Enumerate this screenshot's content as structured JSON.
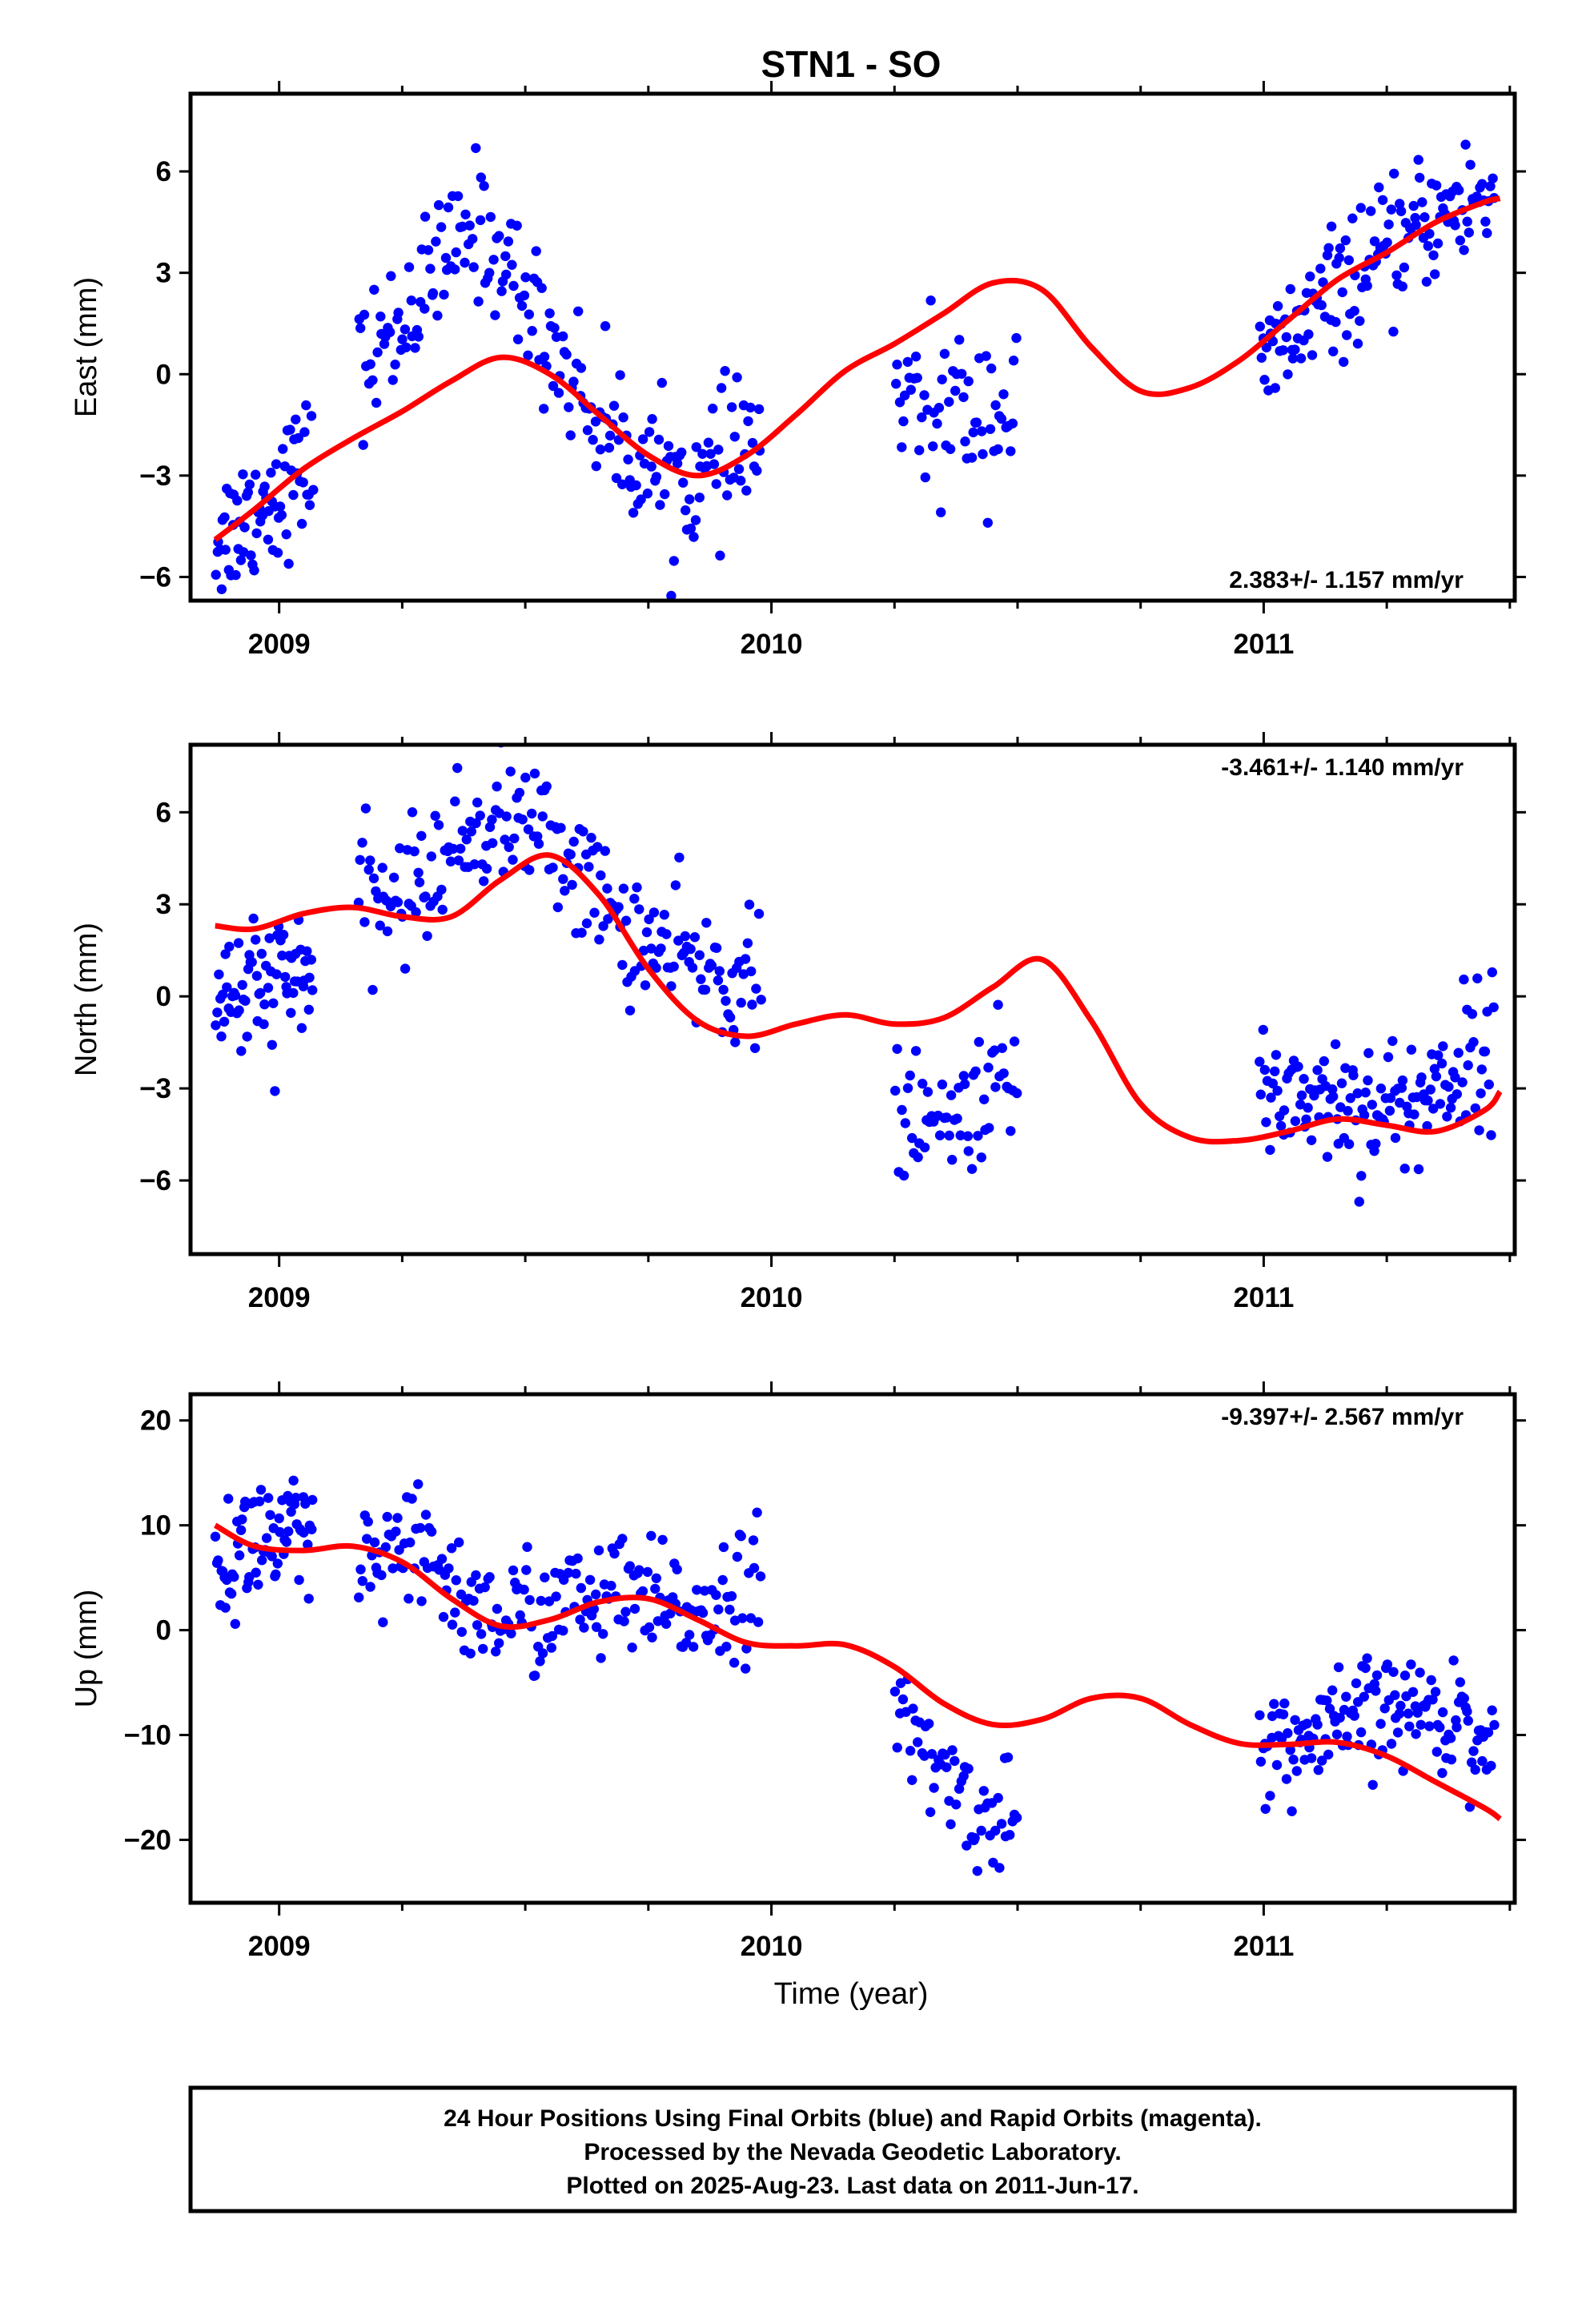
{
  "title": "STN1 - SO",
  "xlabel": "Time (year)",
  "footer": [
    "24 Hour Positions Using Final Orbits (blue) and Rapid Orbits (magenta).",
    "Processed by the Nevada Geodetic Laboratory.",
    "Plotted on 2025-Aug-23. Last data on 2011-Jun-17."
  ],
  "colors": {
    "points": "#0000ff",
    "fit": "#ff0000",
    "frame": "#000000"
  },
  "chart_data": [
    {
      "type": "scatter",
      "ylabel": "East (mm)",
      "rate": "2.383+/- 1.157 mm/yr",
      "xlim": [
        2008.82,
        2011.51
      ],
      "ylim": [
        -6.7,
        8.3
      ],
      "xticks": [
        2009,
        2010,
        2011
      ],
      "yticks": [
        -6,
        -3,
        0,
        3,
        6
      ],
      "fit": {
        "x": [
          2008.87,
          2008.95,
          2009.05,
          2009.15,
          2009.25,
          2009.35,
          2009.45,
          2009.55,
          2009.65,
          2009.75,
          2009.85,
          2009.95,
          2010.05,
          2010.15,
          2010.25,
          2010.35,
          2010.45,
          2010.55,
          2010.65,
          2010.75,
          2010.85,
          2010.95,
          2011.05,
          2011.15,
          2011.25,
          2011.35,
          2011.45,
          2011.48
        ],
        "y": [
          -4.9,
          -4.0,
          -2.8,
          -1.9,
          -1.1,
          -0.2,
          0.5,
          0.0,
          -1.2,
          -2.4,
          -3.0,
          -2.4,
          -1.2,
          0.1,
          0.9,
          1.8,
          2.7,
          2.5,
          0.8,
          -0.5,
          -0.4,
          0.4,
          1.6,
          2.8,
          3.6,
          4.5,
          5.1,
          5.2
        ]
      },
      "segments": [
        {
          "x0": 2008.87,
          "x1": 2009.07,
          "ctrl": [
            [
              2008.87,
              -4.9
            ],
            [
              2008.95,
              -4.0
            ],
            [
              2009.05,
              -2.8
            ],
            [
              2009.07,
              -2.6
            ]
          ],
          "spread": 1.35,
          "n": 70
        },
        {
          "x0": 2009.16,
          "x1": 2009.98,
          "ctrl": [
            [
              2009.16,
              0.0
            ],
            [
              2009.27,
              2.0
            ],
            [
              2009.4,
              4.5
            ],
            [
              2009.47,
              3.0
            ],
            [
              2009.55,
              1.0
            ],
            [
              2009.65,
              -1.3
            ],
            [
              2009.75,
              -2.8
            ],
            [
              2009.85,
              -3.3
            ],
            [
              2009.92,
              -2.5
            ],
            [
              2009.98,
              -1.8
            ]
          ],
          "spread": 1.35,
          "n": 210
        },
        {
          "x0": 2010.25,
          "x1": 2010.5,
          "ctrl": [
            [
              2010.25,
              -1.0
            ],
            [
              2010.35,
              -1.2
            ],
            [
              2010.42,
              -0.9
            ],
            [
              2010.5,
              -1.0
            ]
          ],
          "spread": 1.6,
          "n": 60
        },
        {
          "x0": 2010.99,
          "x1": 2011.47,
          "ctrl": [
            [
              2010.99,
              0.0
            ],
            [
              2011.05,
              1.0
            ],
            [
              2011.15,
              2.5
            ],
            [
              2011.25,
              3.5
            ],
            [
              2011.35,
              4.7
            ],
            [
              2011.47,
              5.3
            ]
          ],
          "spread": 1.25,
          "n": 140
        }
      ]
    },
    {
      "type": "scatter",
      "ylabel": "North (mm)",
      "rate": "-3.461+/- 1.140 mm/yr",
      "xlim": [
        2008.82,
        2011.51
      ],
      "ylim": [
        -8.4,
        8.2
      ],
      "xticks": [
        2009,
        2010,
        2011
      ],
      "yticks": [
        -6,
        -3,
        0,
        3,
        6
      ],
      "fit": {
        "x": [
          2008.87,
          2008.95,
          2009.05,
          2009.15,
          2009.25,
          2009.35,
          2009.45,
          2009.55,
          2009.65,
          2009.75,
          2009.85,
          2009.95,
          2010.05,
          2010.15,
          2010.25,
          2010.35,
          2010.45,
          2010.55,
          2010.65,
          2010.75,
          2010.85,
          2010.95,
          2011.05,
          2011.15,
          2011.25,
          2011.35,
          2011.45,
          2011.48
        ],
        "y": [
          2.3,
          2.2,
          2.7,
          2.9,
          2.6,
          2.6,
          3.8,
          4.6,
          3.3,
          0.9,
          -0.8,
          -1.3,
          -0.9,
          -0.6,
          -0.9,
          -0.7,
          0.3,
          1.2,
          -0.8,
          -3.5,
          -4.6,
          -4.7,
          -4.4,
          -4.0,
          -4.2,
          -4.4,
          -3.7,
          -3.1
        ]
      },
      "segments": [
        {
          "x0": 2008.87,
          "x1": 2009.07,
          "ctrl": [
            [
              2008.87,
              0.2
            ],
            [
              2008.95,
              0.0
            ],
            [
              2009.05,
              0.8
            ],
            [
              2009.07,
              1.2
            ]
          ],
          "spread": 1.6,
          "n": 70
        },
        {
          "x0": 2009.16,
          "x1": 2009.98,
          "ctrl": [
            [
              2009.16,
              2.8
            ],
            [
              2009.27,
              3.5
            ],
            [
              2009.4,
              5.5
            ],
            [
              2009.5,
              5.8
            ],
            [
              2009.6,
              4.3
            ],
            [
              2009.7,
              2.2
            ],
            [
              2009.8,
              1.3
            ],
            [
              2009.9,
              0.6
            ],
            [
              2009.98,
              0.5
            ]
          ],
          "spread": 1.4,
          "n": 210
        },
        {
          "x0": 2010.25,
          "x1": 2010.5,
          "ctrl": [
            [
              2010.25,
              -3.8
            ],
            [
              2010.35,
              -4.5
            ],
            [
              2010.42,
              -3.2
            ],
            [
              2010.5,
              -2.7
            ]
          ],
          "spread": 1.4,
          "n": 60
        },
        {
          "x0": 2010.99,
          "x1": 2011.47,
          "ctrl": [
            [
              2010.99,
              -3.0
            ],
            [
              2011.1,
              -3.2
            ],
            [
              2011.2,
              -3.5
            ],
            [
              2011.3,
              -3.6
            ],
            [
              2011.4,
              -2.2
            ],
            [
              2011.47,
              -1.5
            ]
          ],
          "spread": 1.5,
          "n": 140
        }
      ]
    },
    {
      "type": "scatter",
      "ylabel": "Up (mm)",
      "rate": "-9.397+/- 2.567 mm/yr",
      "xlim": [
        2008.82,
        2011.51
      ],
      "ylim": [
        -26,
        22.5
      ],
      "xticks": [
        2009,
        2010,
        2011
      ],
      "yticks": [
        -20,
        -10,
        0,
        10,
        20
      ],
      "fit": {
        "x": [
          2008.87,
          2008.95,
          2009.05,
          2009.15,
          2009.25,
          2009.35,
          2009.45,
          2009.55,
          2009.65,
          2009.75,
          2009.85,
          2009.95,
          2010.05,
          2010.15,
          2010.25,
          2010.35,
          2010.45,
          2010.55,
          2010.65,
          2010.75,
          2010.85,
          2010.95,
          2011.05,
          2011.15,
          2011.25,
          2011.35,
          2011.45,
          2011.48
        ],
        "y": [
          10.0,
          8.0,
          7.6,
          8.0,
          6.5,
          3.0,
          0.4,
          1.0,
          2.7,
          3.0,
          1.0,
          -1.2,
          -1.5,
          -1.4,
          -3.5,
          -7.0,
          -9.0,
          -8.5,
          -6.5,
          -6.5,
          -9.0,
          -10.8,
          -10.9,
          -10.7,
          -12.0,
          -14.5,
          -17.0,
          -18.0
        ]
      },
      "segments": [
        {
          "x0": 2008.87,
          "x1": 2009.07,
          "ctrl": [
            [
              2008.87,
              5.0
            ],
            [
              2008.95,
              9.0
            ],
            [
              2009.05,
              8.0
            ],
            [
              2009.07,
              7.0
            ]
          ],
          "spread": 4.5,
          "n": 70
        },
        {
          "x0": 2009.16,
          "x1": 2009.98,
          "ctrl": [
            [
              2009.16,
              5.5
            ],
            [
              2009.3,
              7.5
            ],
            [
              2009.4,
              1.5
            ],
            [
              2009.5,
              1.5
            ],
            [
              2009.6,
              2.5
            ],
            [
              2009.7,
              3.0
            ],
            [
              2009.8,
              1.5
            ],
            [
              2009.9,
              3.0
            ],
            [
              2009.98,
              5.0
            ]
          ],
          "spread": 4.0,
          "n": 210
        },
        {
          "x0": 2010.25,
          "x1": 2010.5,
          "ctrl": [
            [
              2010.25,
              -8.0
            ],
            [
              2010.35,
              -14.0
            ],
            [
              2010.42,
              -17.5
            ],
            [
              2010.5,
              -18.0
            ]
          ],
          "spread": 3.5,
          "n": 60
        },
        {
          "x0": 2010.99,
          "x1": 2011.47,
          "ctrl": [
            [
              2010.99,
              -11.0
            ],
            [
              2011.1,
              -11.0
            ],
            [
              2011.2,
              -8.0
            ],
            [
              2011.3,
              -7.5
            ],
            [
              2011.4,
              -8.5
            ],
            [
              2011.47,
              -12.0
            ]
          ],
          "spread": 3.5,
          "n": 140
        }
      ]
    }
  ]
}
